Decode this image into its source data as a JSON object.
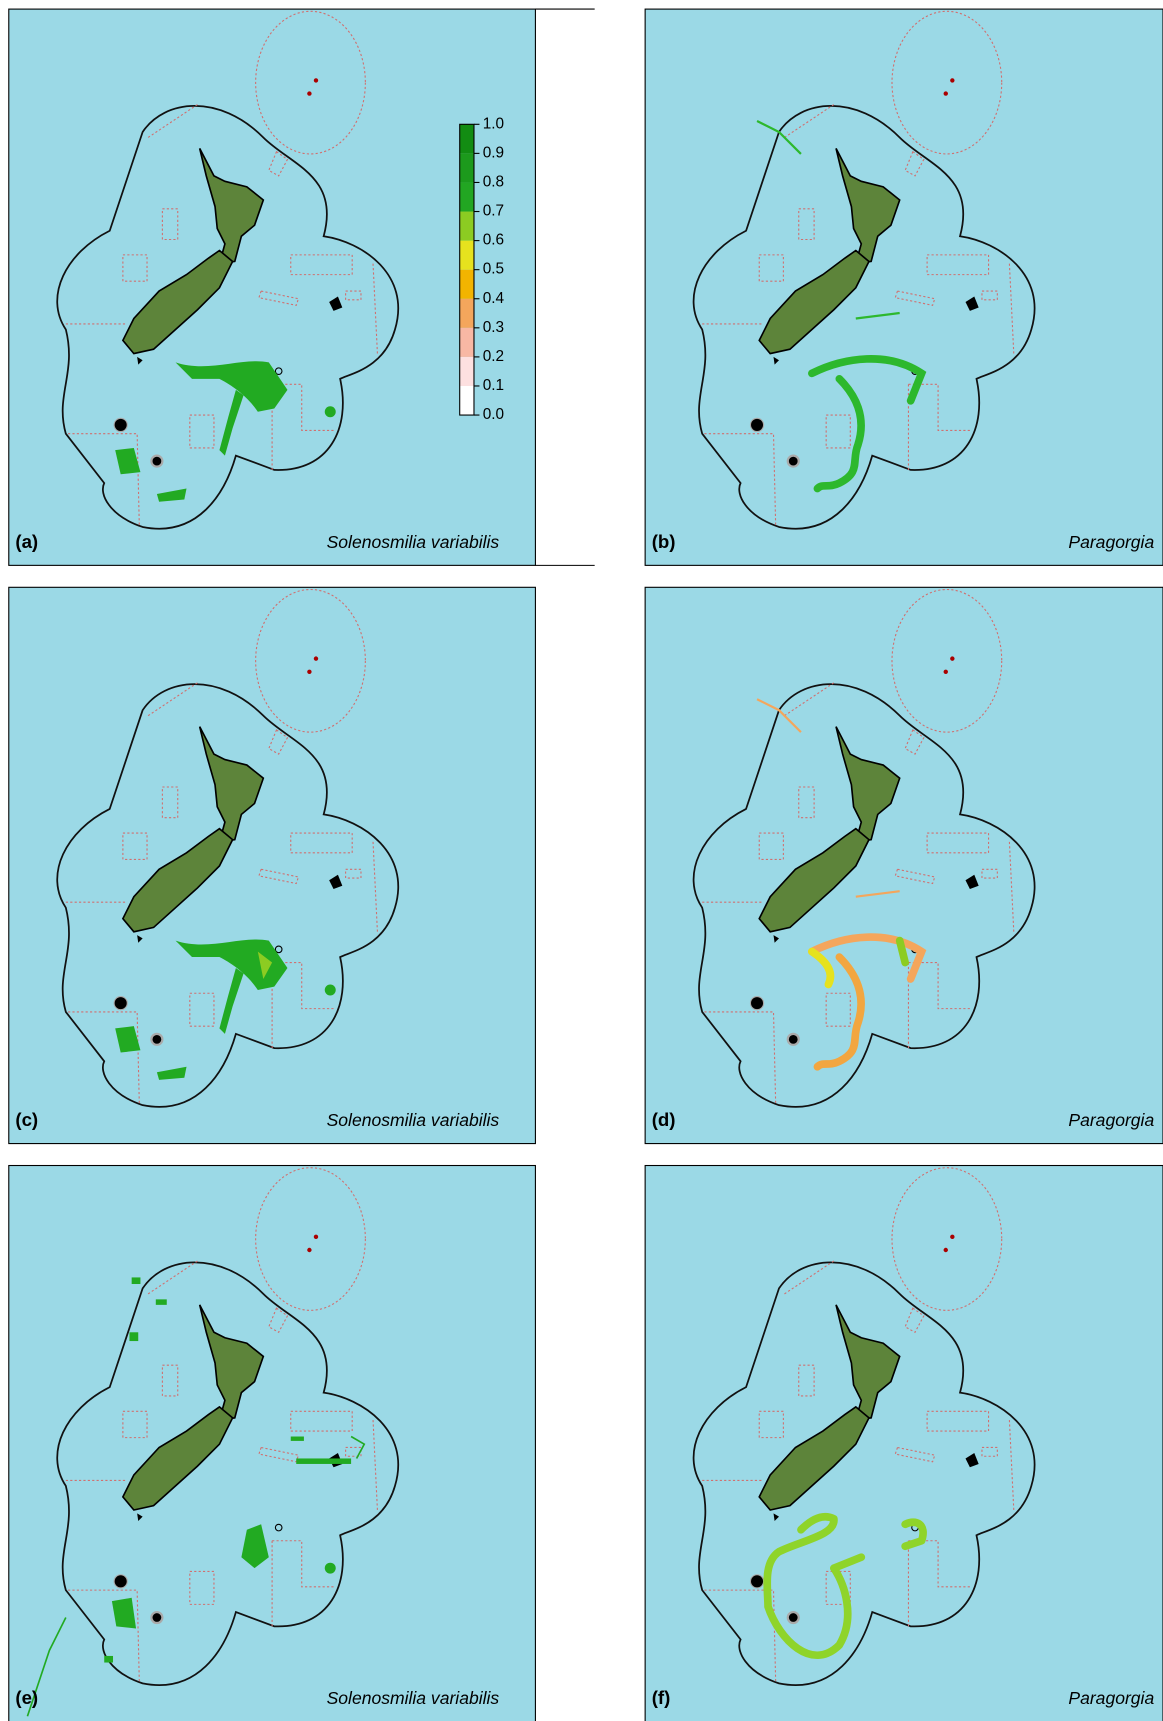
{
  "panels": [
    {
      "label": "(a)",
      "species": "Solenosmilia variabilis"
    },
    {
      "label": "(b)",
      "species": "Paragorgia"
    },
    {
      "label": "(c)",
      "species": "Solenosmilia variabilis"
    },
    {
      "label": "(d)",
      "species": "Paragorgia"
    },
    {
      "label": "(e)",
      "species": "Solenosmilia variabilis"
    },
    {
      "label": "(f)",
      "species": "Paragorgia"
    }
  ],
  "legend": {
    "ticks": [
      {
        "value": 0,
        "label": "0.0"
      },
      {
        "value": 0.1,
        "label": "0.1"
      },
      {
        "value": 0.2,
        "label": "0.2"
      },
      {
        "value": 0.3,
        "label": "0.3"
      },
      {
        "value": 0.4,
        "label": "0.4"
      },
      {
        "value": 0.5,
        "label": "0.5"
      },
      {
        "value": 0.6,
        "label": "0.6"
      },
      {
        "value": 0.7,
        "label": "0.7"
      },
      {
        "value": 0.8,
        "label": "0.8"
      },
      {
        "value": 0.9,
        "label": "0.9"
      },
      {
        "value": 1,
        "label": "1.0"
      }
    ],
    "colors": [
      "#ffffff",
      "#fde0e0",
      "#f8b8a4",
      "#f4a65c",
      "#f2b400",
      "#e6e21e",
      "#8ccc22",
      "#22a622",
      "#1c9a1c",
      "#128c12"
    ]
  }
}
